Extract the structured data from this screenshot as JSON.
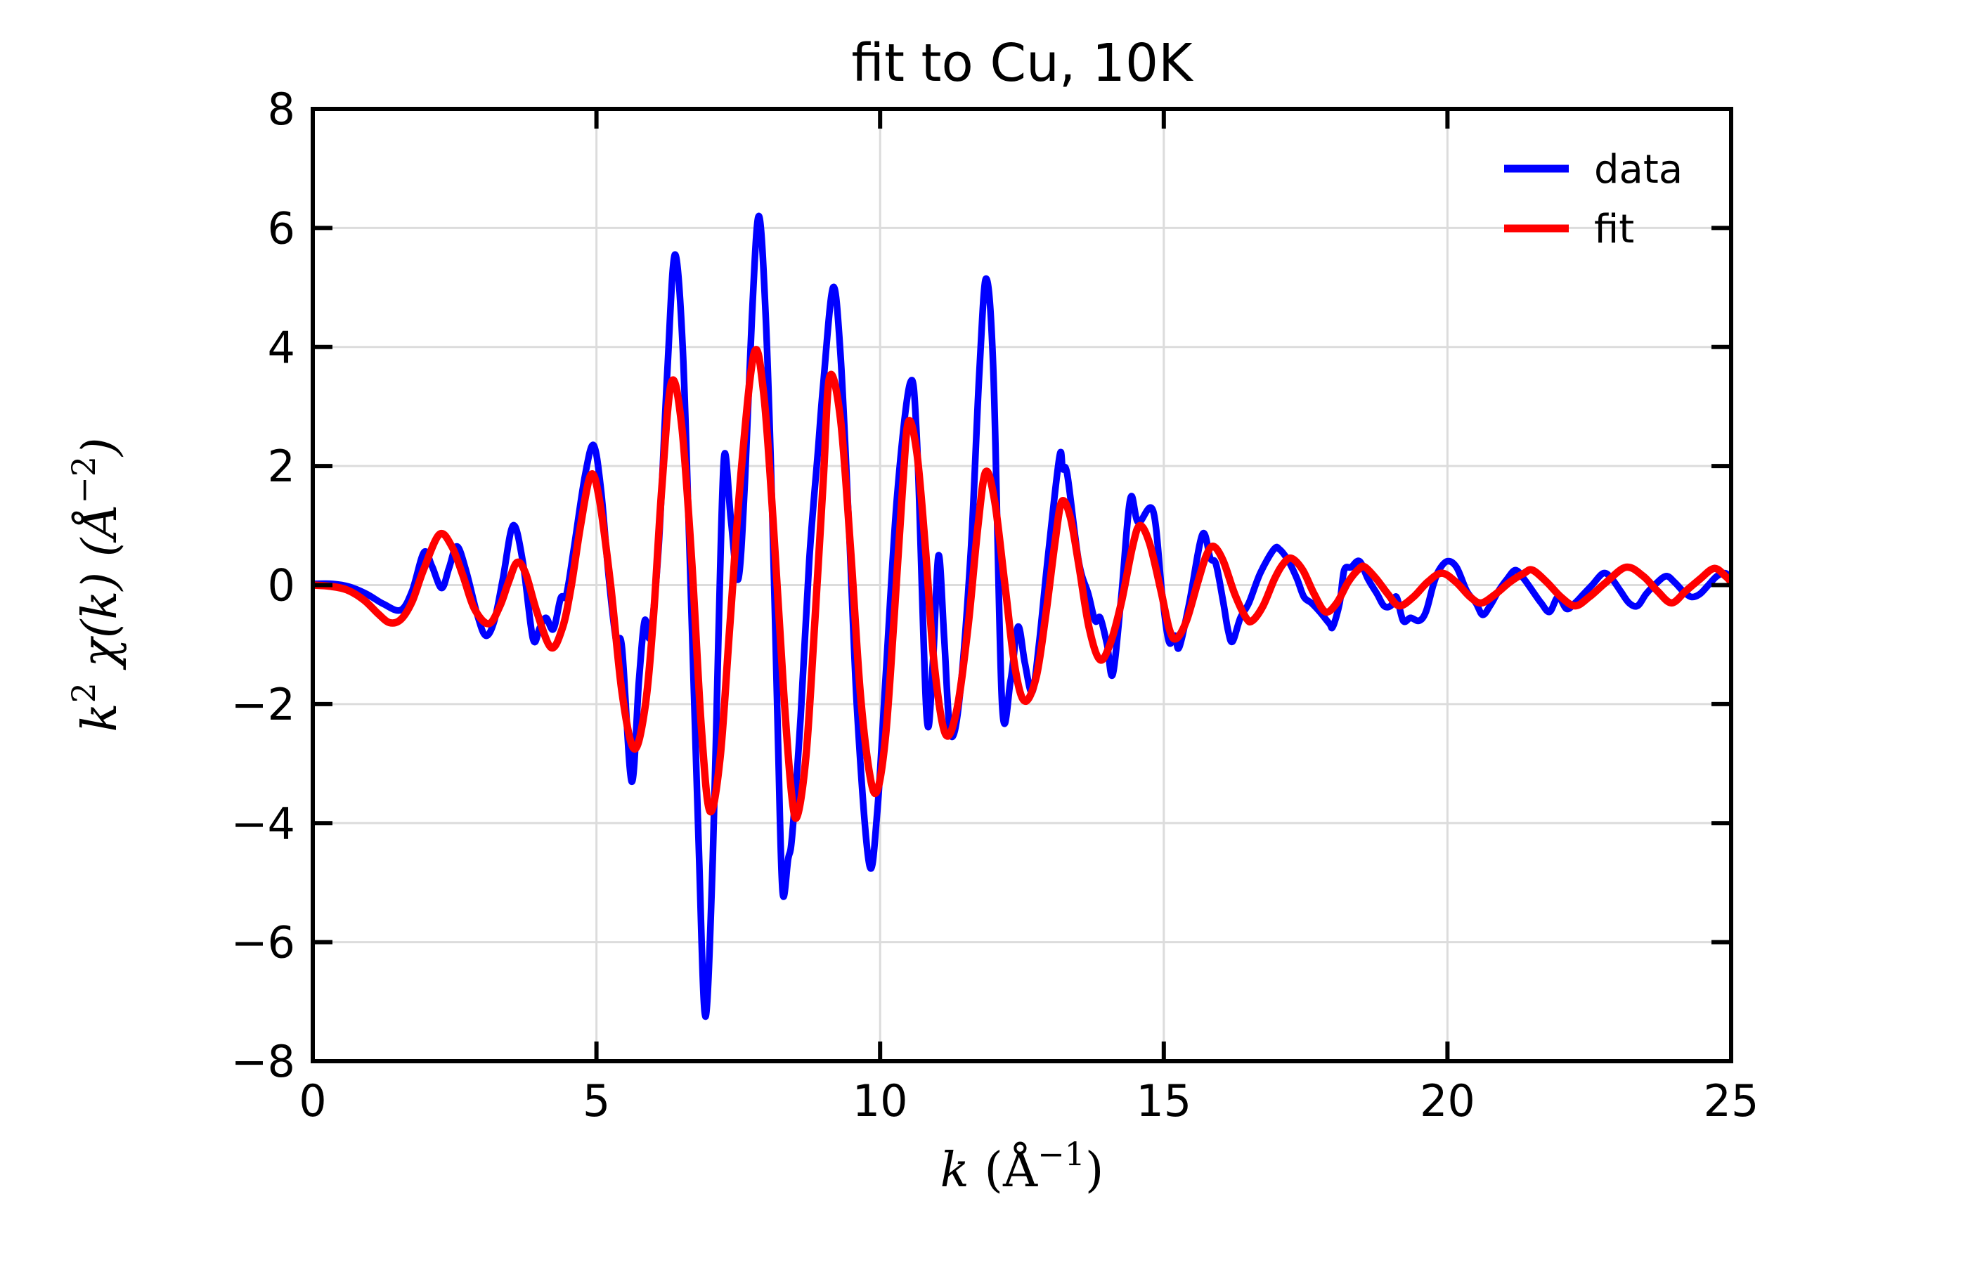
{
  "title": "fit to Cu, 10K",
  "axes": {
    "xlabel_parts": {
      "base": "k",
      "unit_pre": " (Å",
      "sup": "−1",
      "unit_post": ")"
    },
    "ylabel_parts": {
      "base": "k",
      "sup1": "2",
      "mid": " χ(k) (Å",
      "sup2": "−2",
      "end": ")"
    },
    "xticks": {
      "values": [
        0,
        5,
        10,
        15,
        20,
        25
      ],
      "labels": [
        "0",
        "5",
        "10",
        "15",
        "20",
        "25"
      ]
    },
    "yticks": {
      "values": [
        -8,
        -6,
        -4,
        -2,
        0,
        2,
        4,
        6,
        8
      ],
      "labels": [
        "−8",
        "−6",
        "−4",
        "−2",
        "0",
        "2",
        "4",
        "6",
        "8"
      ]
    }
  },
  "legend": {
    "items": [
      {
        "label": "data",
        "color": "#0000ff"
      },
      {
        "label": "fit",
        "color": "#ff0000"
      }
    ]
  },
  "colors": {
    "data": "#0000ff",
    "fit": "#ff0000",
    "grid": "#dcdcdc",
    "spine": "#000000",
    "text": "#000000",
    "background": "#ffffff"
  },
  "chart_data": {
    "type": "line",
    "title": "fit to Cu, 10K",
    "xlabel": "k (Å⁻¹)",
    "ylabel": "k² χ(k) (Å⁻²)",
    "xlim": [
      0,
      25
    ],
    "ylim": [
      -8,
      8
    ],
    "grid": true,
    "legend_position": "upper right",
    "series": [
      {
        "name": "data",
        "color": "#0000ff",
        "points": [
          [
            0,
            0.02
          ],
          [
            0.35,
            0.02
          ],
          [
            0.65,
            -0.03
          ],
          [
            0.95,
            -0.15
          ],
          [
            1.25,
            -0.32
          ],
          [
            1.55,
            -0.42
          ],
          [
            1.75,
            -0.1
          ],
          [
            1.96,
            0.55
          ],
          [
            2.1,
            0.32
          ],
          [
            2.27,
            -0.05
          ],
          [
            2.4,
            0.28
          ],
          [
            2.54,
            0.65
          ],
          [
            2.7,
            0.25
          ],
          [
            2.9,
            -0.5
          ],
          [
            3.05,
            -0.85
          ],
          [
            3.2,
            -0.6
          ],
          [
            3.35,
            0.1
          ],
          [
            3.53,
            1.0
          ],
          [
            3.7,
            0.4
          ],
          [
            3.88,
            -0.9
          ],
          [
            4.0,
            -0.72
          ],
          [
            4.11,
            -0.55
          ],
          [
            4.24,
            -0.74
          ],
          [
            4.37,
            -0.22
          ],
          [
            4.47,
            -0.16
          ],
          [
            4.6,
            0.6
          ],
          [
            4.8,
            1.85
          ],
          [
            4.95,
            2.35
          ],
          [
            5.08,
            1.6
          ],
          [
            5.22,
            0.1
          ],
          [
            5.35,
            -0.95
          ],
          [
            5.45,
            -1.05
          ],
          [
            5.62,
            -3.3
          ],
          [
            5.75,
            -1.6
          ],
          [
            5.85,
            -0.6
          ],
          [
            5.95,
            -0.85
          ],
          [
            6.1,
            0.7
          ],
          [
            6.25,
            3.6
          ],
          [
            6.38,
            5.55
          ],
          [
            6.52,
            4.0
          ],
          [
            6.65,
            0.3
          ],
          [
            6.8,
            -4.3
          ],
          [
            6.92,
            -7.25
          ],
          [
            7.05,
            -4.6
          ],
          [
            7.15,
            -0.9
          ],
          [
            7.25,
            2.15
          ],
          [
            7.37,
            1.1
          ],
          [
            7.5,
            0.1
          ],
          [
            7.62,
            1.8
          ],
          [
            7.74,
            4.5
          ],
          [
            7.86,
            6.2
          ],
          [
            7.98,
            4.6
          ],
          [
            8.1,
            1.2
          ],
          [
            8.2,
            -2.6
          ],
          [
            8.28,
            -5.15
          ],
          [
            8.38,
            -4.6
          ],
          [
            8.45,
            -4.2
          ],
          [
            8.6,
            -2.2
          ],
          [
            8.75,
            0.4
          ],
          [
            8.9,
            2.2
          ],
          [
            9.0,
            3.4
          ],
          [
            9.17,
            5.0
          ],
          [
            9.3,
            3.9
          ],
          [
            9.45,
            1.0
          ],
          [
            9.6,
            -2.2
          ],
          [
            9.81,
            -4.7
          ],
          [
            9.95,
            -3.8
          ],
          [
            10.1,
            -1.5
          ],
          [
            10.3,
            1.5
          ],
          [
            10.53,
            3.4
          ],
          [
            10.65,
            2.4
          ],
          [
            10.82,
            -2.2
          ],
          [
            10.93,
            -1.3
          ],
          [
            11.03,
            0.5
          ],
          [
            11.13,
            -0.9
          ],
          [
            11.24,
            -2.5
          ],
          [
            11.4,
            -1.9
          ],
          [
            11.6,
            0.6
          ],
          [
            11.75,
            3.6
          ],
          [
            11.87,
            5.15
          ],
          [
            12.0,
            3.5
          ],
          [
            12.15,
            -2.0
          ],
          [
            12.3,
            -1.6
          ],
          [
            12.43,
            -0.7
          ],
          [
            12.55,
            -1.3
          ],
          [
            12.68,
            -1.8
          ],
          [
            12.8,
            -1.0
          ],
          [
            12.95,
            0.4
          ],
          [
            13.16,
            2.15
          ],
          [
            13.22,
            1.95
          ],
          [
            13.3,
            1.85
          ],
          [
            13.5,
            0.4
          ],
          [
            13.67,
            -0.15
          ],
          [
            13.79,
            -0.6
          ],
          [
            13.88,
            -0.55
          ],
          [
            14.0,
            -1.0
          ],
          [
            14.1,
            -1.5
          ],
          [
            14.25,
            -0.2
          ],
          [
            14.41,
            1.45
          ],
          [
            14.55,
            1.05
          ],
          [
            14.81,
            1.25
          ],
          [
            14.97,
            -0.15
          ],
          [
            15.09,
            -0.95
          ],
          [
            15.2,
            -0.85
          ],
          [
            15.27,
            -1.05
          ],
          [
            15.45,
            -0.3
          ],
          [
            15.68,
            0.85
          ],
          [
            15.82,
            0.45
          ],
          [
            15.92,
            0.35
          ],
          [
            16.05,
            -0.3
          ],
          [
            16.13,
            -0.75
          ],
          [
            16.21,
            -0.95
          ],
          [
            16.35,
            -0.55
          ],
          [
            16.5,
            -0.3
          ],
          [
            16.7,
            0.2
          ],
          [
            16.94,
            0.6
          ],
          [
            17.04,
            0.6
          ],
          [
            17.2,
            0.4
          ],
          [
            17.35,
            0.1
          ],
          [
            17.47,
            -0.2
          ],
          [
            17.6,
            -0.3
          ],
          [
            17.75,
            -0.45
          ],
          [
            17.92,
            -0.65
          ],
          [
            17.98,
            -0.7
          ],
          [
            18.1,
            -0.3
          ],
          [
            18.18,
            0.25
          ],
          [
            18.3,
            0.3
          ],
          [
            18.45,
            0.4
          ],
          [
            18.6,
            0.1
          ],
          [
            18.76,
            -0.15
          ],
          [
            18.88,
            -0.35
          ],
          [
            19.0,
            -0.35
          ],
          [
            19.1,
            -0.2
          ],
          [
            19.22,
            -0.6
          ],
          [
            19.35,
            -0.55
          ],
          [
            19.5,
            -0.6
          ],
          [
            19.62,
            -0.45
          ],
          [
            19.75,
            0.0
          ],
          [
            19.85,
            0.25
          ],
          [
            20.0,
            0.4
          ],
          [
            20.16,
            0.3
          ],
          [
            20.34,
            -0.1
          ],
          [
            20.5,
            -0.3
          ],
          [
            20.62,
            -0.5
          ],
          [
            20.75,
            -0.35
          ],
          [
            20.9,
            -0.1
          ],
          [
            21.05,
            0.1
          ],
          [
            21.2,
            0.25
          ],
          [
            21.35,
            0.1
          ],
          [
            21.5,
            -0.1
          ],
          [
            21.65,
            -0.3
          ],
          [
            21.8,
            -0.45
          ],
          [
            21.95,
            -0.2
          ],
          [
            22.1,
            -0.4
          ],
          [
            22.25,
            -0.3
          ],
          [
            22.4,
            -0.15
          ],
          [
            22.55,
            0.0
          ],
          [
            22.75,
            0.2
          ],
          [
            22.9,
            0.1
          ],
          [
            23.05,
            -0.1
          ],
          [
            23.2,
            -0.3
          ],
          [
            23.35,
            -0.35
          ],
          [
            23.5,
            -0.15
          ],
          [
            23.65,
            0.0
          ],
          [
            23.85,
            0.15
          ],
          [
            24.0,
            0.05
          ],
          [
            24.15,
            -0.1
          ],
          [
            24.3,
            -0.2
          ],
          [
            24.45,
            -0.15
          ],
          [
            24.6,
            0.0
          ],
          [
            24.75,
            0.15
          ],
          [
            24.9,
            0.2
          ],
          [
            25.0,
            0.1
          ]
        ]
      },
      {
        "name": "fit",
        "color": "#ff0000",
        "points": [
          [
            0,
            0.0
          ],
          [
            0.3,
            -0.02
          ],
          [
            0.6,
            -0.08
          ],
          [
            0.9,
            -0.25
          ],
          [
            1.15,
            -0.48
          ],
          [
            1.35,
            -0.63
          ],
          [
            1.55,
            -0.58
          ],
          [
            1.75,
            -0.28
          ],
          [
            1.95,
            0.25
          ],
          [
            2.23,
            0.85
          ],
          [
            2.45,
            0.65
          ],
          [
            2.65,
            0.15
          ],
          [
            2.85,
            -0.4
          ],
          [
            3.1,
            -0.65
          ],
          [
            3.3,
            -0.35
          ],
          [
            3.45,
            0.05
          ],
          [
            3.6,
            0.38
          ],
          [
            3.75,
            0.2
          ],
          [
            3.95,
            -0.45
          ],
          [
            4.2,
            -1.05
          ],
          [
            4.4,
            -0.72
          ],
          [
            4.55,
            -0.05
          ],
          [
            4.72,
            1.0
          ],
          [
            4.9,
            1.85
          ],
          [
            5.05,
            1.45
          ],
          [
            5.25,
            0.0
          ],
          [
            5.45,
            -1.8
          ],
          [
            5.66,
            -2.75
          ],
          [
            5.85,
            -2.1
          ],
          [
            6.0,
            -0.6
          ],
          [
            6.15,
            1.6
          ],
          [
            6.32,
            3.4
          ],
          [
            6.5,
            2.7
          ],
          [
            6.68,
            0.4
          ],
          [
            6.85,
            -2.4
          ],
          [
            7.0,
            -3.8
          ],
          [
            7.18,
            -2.9
          ],
          [
            7.35,
            -0.7
          ],
          [
            7.55,
            1.9
          ],
          [
            7.78,
            3.9
          ],
          [
            7.95,
            3.2
          ],
          [
            8.12,
            1.0
          ],
          [
            8.3,
            -1.8
          ],
          [
            8.45,
            -3.6
          ],
          [
            8.55,
            -3.85
          ],
          [
            8.7,
            -2.8
          ],
          [
            8.85,
            -0.6
          ],
          [
            9.0,
            1.8
          ],
          [
            9.11,
            3.5
          ],
          [
            9.3,
            2.8
          ],
          [
            9.48,
            0.6
          ],
          [
            9.65,
            -1.8
          ],
          [
            9.82,
            -3.2
          ],
          [
            9.95,
            -3.45
          ],
          [
            10.1,
            -2.5
          ],
          [
            10.25,
            -0.5
          ],
          [
            10.4,
            1.7
          ],
          [
            10.5,
            2.75
          ],
          [
            10.65,
            2.2
          ],
          [
            10.8,
            0.6
          ],
          [
            10.95,
            -1.3
          ],
          [
            11.15,
            -2.5
          ],
          [
            11.35,
            -2.1
          ],
          [
            11.55,
            -0.7
          ],
          [
            11.72,
            0.95
          ],
          [
            11.86,
            1.9
          ],
          [
            12.02,
            1.4
          ],
          [
            12.2,
            0.0
          ],
          [
            12.38,
            -1.4
          ],
          [
            12.55,
            -1.95
          ],
          [
            12.75,
            -1.55
          ],
          [
            12.92,
            -0.5
          ],
          [
            13.08,
            0.7
          ],
          [
            13.2,
            1.4
          ],
          [
            13.35,
            1.15
          ],
          [
            13.5,
            0.35
          ],
          [
            13.68,
            -0.7
          ],
          [
            13.87,
            -1.25
          ],
          [
            14.05,
            -1.0
          ],
          [
            14.25,
            -0.3
          ],
          [
            14.45,
            0.65
          ],
          [
            14.58,
            1.0
          ],
          [
            14.75,
            0.7
          ],
          [
            14.95,
            -0.1
          ],
          [
            15.1,
            -0.75
          ],
          [
            15.22,
            -0.9
          ],
          [
            15.4,
            -0.6
          ],
          [
            15.6,
            0.05
          ],
          [
            15.75,
            0.5
          ],
          [
            15.88,
            0.65
          ],
          [
            16.05,
            0.4
          ],
          [
            16.25,
            -0.15
          ],
          [
            16.45,
            -0.55
          ],
          [
            16.56,
            -0.6
          ],
          [
            16.75,
            -0.35
          ],
          [
            16.95,
            0.1
          ],
          [
            17.1,
            0.35
          ],
          [
            17.25,
            0.45
          ],
          [
            17.45,
            0.25
          ],
          [
            17.65,
            -0.15
          ],
          [
            17.85,
            -0.45
          ],
          [
            18.05,
            -0.3
          ],
          [
            18.25,
            0.05
          ],
          [
            18.45,
            0.28
          ],
          [
            18.55,
            0.3
          ],
          [
            18.75,
            0.1
          ],
          [
            18.95,
            -0.15
          ],
          [
            19.15,
            -0.35
          ],
          [
            19.4,
            -0.2
          ],
          [
            19.65,
            0.05
          ],
          [
            19.9,
            0.2
          ],
          [
            20.15,
            0.05
          ],
          [
            20.4,
            -0.2
          ],
          [
            20.6,
            -0.3
          ],
          [
            20.85,
            -0.15
          ],
          [
            21.1,
            0.05
          ],
          [
            21.35,
            0.2
          ],
          [
            21.5,
            0.25
          ],
          [
            21.75,
            0.05
          ],
          [
            22.0,
            -0.2
          ],
          [
            22.25,
            -0.35
          ],
          [
            22.5,
            -0.2
          ],
          [
            22.8,
            0.05
          ],
          [
            23.15,
            0.3
          ],
          [
            23.45,
            0.15
          ],
          [
            23.7,
            -0.1
          ],
          [
            23.95,
            -0.3
          ],
          [
            24.2,
            -0.1
          ],
          [
            24.45,
            0.1
          ],
          [
            24.7,
            0.28
          ],
          [
            24.9,
            0.15
          ],
          [
            25.0,
            0.05
          ]
        ]
      }
    ]
  }
}
